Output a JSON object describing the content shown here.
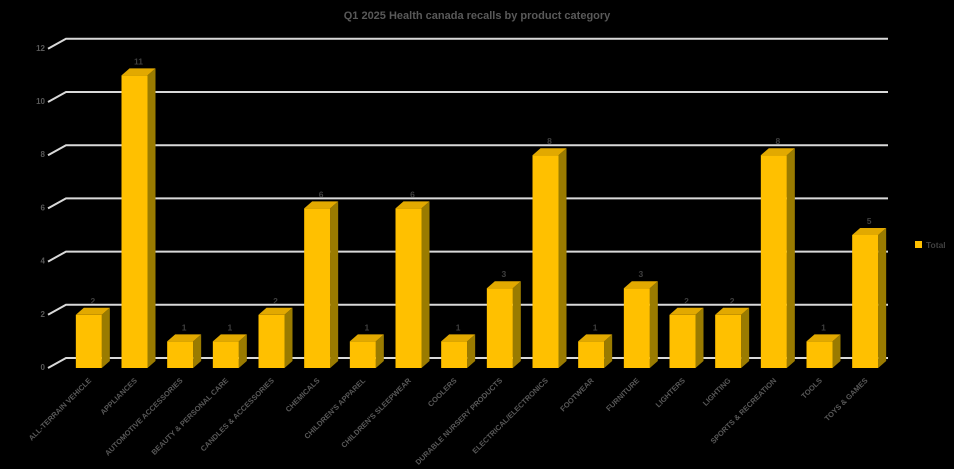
{
  "title": "Q1 2025 Health canada recalls by product category",
  "legend": {
    "label": "Total"
  },
  "colors": {
    "background": "#000000",
    "bar_front": "#FFC000",
    "bar_top": "#E2A900",
    "bar_side": "#9A7B00",
    "gridline": "#D9D9D9",
    "title_text": "#595959",
    "axis_text": "#595959",
    "category_text": "#595959",
    "data_label": "#3F3F3F",
    "legend_text": "#404040"
  },
  "chart_data": {
    "type": "bar",
    "style": "3d-column",
    "title": "Q1 2025 Health canada recalls by product category",
    "categories": [
      "ALL-TERRAIN VEHICLE",
      "APPLIANCES",
      "AUTOMOTIVE ACCESSORIES",
      "BEAUTY & PERSONAL CARE",
      "CANDLES & ACCESSORIES",
      "CHEMICALS",
      "CHILDREN'S APPAREL",
      "CHILDREN'S SLEEPWEAR",
      "COOLERS",
      "DURABLE NURSERY PRODUCTS",
      "ELECTRICAL/ELECTRONICS",
      "FOOTWEAR",
      "FURNITURE",
      "LIGHTERS",
      "LIGHTING",
      "SPORTS & RECREATION",
      "TOOLS",
      "TOYS & GAMES"
    ],
    "series": [
      {
        "name": "Total",
        "values": [
          2,
          11,
          1,
          1,
          2,
          6,
          1,
          6,
          1,
          3,
          8,
          1,
          3,
          2,
          2,
          8,
          1,
          5
        ]
      }
    ],
    "data_labels": true,
    "xlabel": "",
    "ylabel": "",
    "ylim": [
      0,
      12
    ],
    "yticks": [
      0,
      2,
      4,
      6,
      8,
      10,
      12
    ],
    "grid": true,
    "legend_position": "right"
  }
}
